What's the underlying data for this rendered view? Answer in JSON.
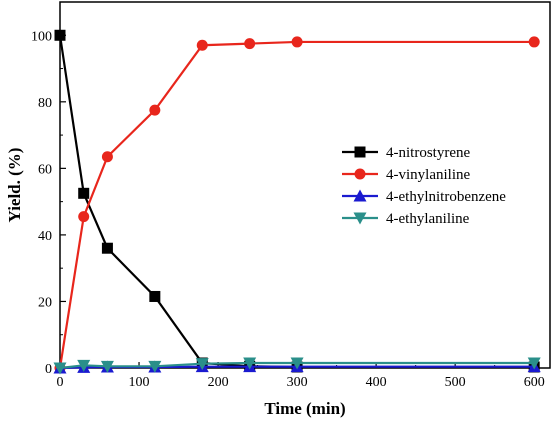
{
  "chart_data": {
    "type": "line",
    "xlabel": "Time (min)",
    "ylabel": "Yield. (%)",
    "xlim": [
      0,
      620
    ],
    "ylim": [
      0,
      110
    ],
    "xticks": [
      0,
      100,
      200,
      300,
      400,
      500,
      600
    ],
    "yticks": [
      0,
      20,
      40,
      60,
      80,
      100
    ],
    "grid": false,
    "legend_position": "center-right",
    "series": [
      {
        "name": "4-nitrostyrene",
        "color": "#000000",
        "marker": "square",
        "x": [
          0,
          30,
          60,
          120,
          180,
          240,
          300,
          600
        ],
        "y": [
          100,
          52.5,
          36,
          21.5,
          1.5,
          0.5,
          0.3,
          0.3
        ]
      },
      {
        "name": "4-vinylaniline",
        "color": "#e8261c",
        "marker": "circle",
        "x": [
          0,
          30,
          60,
          120,
          180,
          240,
          300,
          600
        ],
        "y": [
          0,
          45.5,
          63.5,
          77.5,
          97,
          97.5,
          98,
          98
        ]
      },
      {
        "name": "4-ethylnitrobenzene",
        "color": "#1a1ad0",
        "marker": "triangle-up",
        "x": [
          0,
          30,
          60,
          120,
          180,
          240,
          300,
          600
        ],
        "y": [
          0,
          0.2,
          0.3,
          0.3,
          0.4,
          0.4,
          0.4,
          0.4
        ]
      },
      {
        "name": "4-ethylaniline",
        "color": "#2a8f8a",
        "marker": "triangle-down",
        "x": [
          0,
          30,
          60,
          120,
          180,
          240,
          300,
          600
        ],
        "y": [
          0,
          0.8,
          0.5,
          0.5,
          1.3,
          1.5,
          1.5,
          1.5
        ]
      }
    ]
  }
}
